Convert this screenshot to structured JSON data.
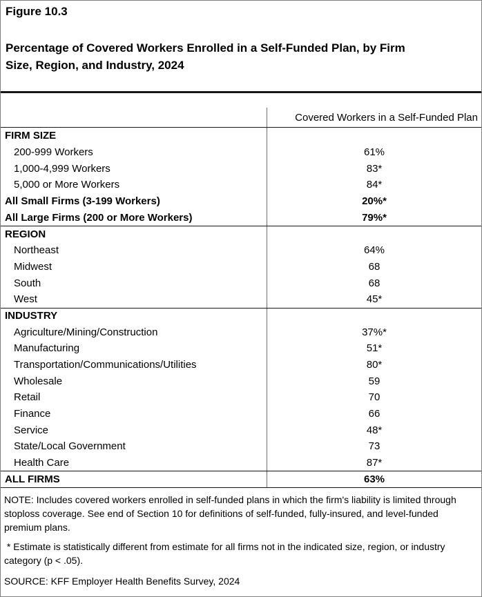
{
  "figure_label": "Figure 10.3",
  "title_lines": [
    "Percentage of Covered Workers Enrolled in a Self-Funded Plan, by Firm",
    "Size, Region, and Industry, 2024"
  ],
  "table": {
    "column_header": "Covered Workers in a Self-Funded Plan",
    "sections": [
      {
        "name": "FIRM SIZE",
        "top_border": false,
        "rows": [
          {
            "label": "FIRM SIZE",
            "value": "",
            "bold": true,
            "indent": false
          },
          {
            "label": "200-999 Workers",
            "value": "61%",
            "bold": false,
            "indent": true
          },
          {
            "label": "1,000-4,999 Workers",
            "value": "83*",
            "bold": false,
            "indent": true
          },
          {
            "label": "5,000 or More Workers",
            "value": "84*",
            "bold": false,
            "indent": true
          },
          {
            "label": "All Small Firms (3-199 Workers)",
            "value": "20%*",
            "bold": true,
            "indent": false
          },
          {
            "label": "All Large Firms (200 or More Workers)",
            "value": "79%*",
            "bold": true,
            "indent": false
          }
        ]
      },
      {
        "name": "REGION",
        "top_border": true,
        "rows": [
          {
            "label": "REGION",
            "value": "",
            "bold": true,
            "indent": false
          },
          {
            "label": "Northeast",
            "value": "64%",
            "bold": false,
            "indent": true
          },
          {
            "label": "Midwest",
            "value": "68",
            "bold": false,
            "indent": true
          },
          {
            "label": "South",
            "value": "68",
            "bold": false,
            "indent": true
          },
          {
            "label": "West",
            "value": "45*",
            "bold": false,
            "indent": true
          }
        ]
      },
      {
        "name": "INDUSTRY",
        "top_border": true,
        "rows": [
          {
            "label": "INDUSTRY",
            "value": "",
            "bold": true,
            "indent": false
          },
          {
            "label": "Agriculture/Mining/Construction",
            "value": "37%*",
            "bold": false,
            "indent": true
          },
          {
            "label": "Manufacturing",
            "value": "51*",
            "bold": false,
            "indent": true
          },
          {
            "label": "Transportation/Communications/Utilities",
            "value": "80*",
            "bold": false,
            "indent": true
          },
          {
            "label": "Wholesale",
            "value": "59",
            "bold": false,
            "indent": true
          },
          {
            "label": "Retail",
            "value": "70",
            "bold": false,
            "indent": true
          },
          {
            "label": "Finance",
            "value": "66",
            "bold": false,
            "indent": true
          },
          {
            "label": "Service",
            "value": "48*",
            "bold": false,
            "indent": true
          },
          {
            "label": "State/Local Government",
            "value": "73",
            "bold": false,
            "indent": true
          },
          {
            "label": "Health Care",
            "value": "87*",
            "bold": false,
            "indent": true
          }
        ]
      },
      {
        "name": "ALL FIRMS",
        "top_border": true,
        "rows": [
          {
            "label": "ALL FIRMS",
            "value": "63%",
            "bold": true,
            "indent": false
          }
        ]
      }
    ]
  },
  "notes": {
    "note": "NOTE: Includes covered workers enrolled in self-funded plans in which the firm's liability is limited through stoploss coverage. See end of Section 10 for definitions of self-funded, fully-insured, and level-funded premium plans.",
    "star": " * Estimate is statistically different from estimate for all firms not in the indicated size, region, or industry category (p < .05).",
    "source": "SOURCE: KFF Employer Health Benefits Survey, 2024"
  },
  "colors": {
    "text": "#000000",
    "rule_heavy": "#161616",
    "rule_light": "#6e6e6e",
    "page_border": "#7f7f7f",
    "background": "#ffffff"
  }
}
